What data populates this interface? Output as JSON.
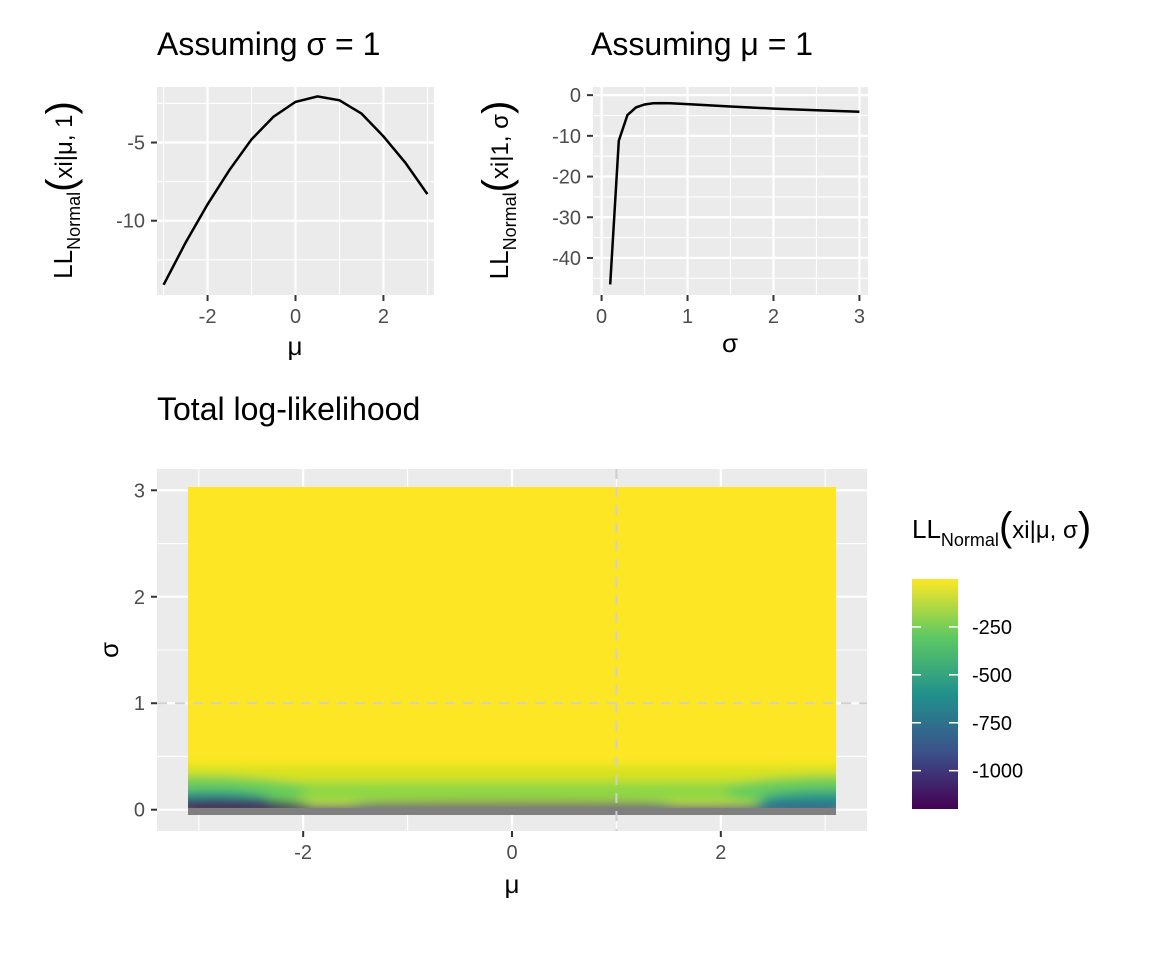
{
  "chart_data": [
    {
      "type": "line",
      "title": "Assuming σ = 1",
      "xlabel": "μ",
      "ylabel_main": "LL",
      "ylabel_sub": "Normal",
      "ylabel_arg": "xi|μ, 1",
      "xlim": [
        -3.15,
        3.15
      ],
      "ylim": [
        -14.75,
        -1.45
      ],
      "x_ticks": [
        -2,
        0,
        2
      ],
      "x_tick_labels": [
        "-2",
        "0",
        "2"
      ],
      "y_ticks": [
        -5,
        -10
      ],
      "y_tick_labels": [
        "-5",
        "-10"
      ],
      "grid": true,
      "x": [
        -3,
        -2.5,
        -2,
        -1.5,
        -1,
        -0.5,
        0,
        0.5,
        1,
        1.5,
        2,
        2.5,
        3
      ],
      "y": [
        -14.1,
        -11.4,
        -8.95,
        -6.75,
        -4.8,
        -3.35,
        -2.4,
        -2.05,
        -2.3,
        -3.15,
        -4.6,
        -6.3,
        -8.3
      ]
    },
    {
      "type": "line",
      "title": "Assuming μ = 1",
      "xlabel": "σ",
      "ylabel_main": "LL",
      "ylabel_sub": "Normal",
      "ylabel_arg": "xi|1, σ",
      "xlim": [
        -0.1,
        3.1
      ],
      "ylim": [
        -49.1,
        2.0
      ],
      "x_ticks": [
        0,
        1,
        2,
        3
      ],
      "x_tick_labels": [
        "0",
        "1",
        "2",
        "3"
      ],
      "y_ticks": [
        0,
        -10,
        -20,
        -30,
        -40
      ],
      "y_tick_labels": [
        "0",
        "-10",
        "-20",
        "-30",
        "-40"
      ],
      "grid": true,
      "x": [
        0.1,
        0.2,
        0.3,
        0.4,
        0.5,
        0.6,
        0.7,
        0.8,
        1.0,
        1.5,
        2.0,
        2.5,
        3.0
      ],
      "y": [
        -46.5,
        -11.2,
        -4.9,
        -3.0,
        -2.3,
        -2.0,
        -1.95,
        -2.0,
        -2.2,
        -2.8,
        -3.3,
        -3.7,
        -4.1
      ]
    },
    {
      "type": "heatmap",
      "title": "Total log-likelihood",
      "xlabel": "μ",
      "ylabel": "σ",
      "xlim": [
        -3.4,
        3.4
      ],
      "ylim": [
        -0.2,
        3.2
      ],
      "x_ticks": [
        -2,
        0,
        2
      ],
      "x_tick_labels": [
        "-2",
        "0",
        "2"
      ],
      "y_ticks": [
        0,
        1,
        2,
        3
      ],
      "y_tick_labels": [
        "0",
        "1",
        "2",
        "3"
      ],
      "x_range": [
        -3.05,
        3.05
      ],
      "y_range": [
        -0.05,
        3.05
      ],
      "reference_lines": {
        "mu": 1,
        "sigma": 1,
        "style": "dashed"
      },
      "legend": {
        "title_main": "LL",
        "title_sub": "Normal",
        "title_arg": "xi|μ, σ",
        "placement": "right",
        "range": [
          -1200,
          0
        ],
        "ticks": [
          -250,
          -500,
          -750,
          -1000
        ],
        "tick_labels": [
          "-250",
          "-500",
          "-750",
          "-1000"
        ],
        "palette": "viridis"
      },
      "colors": [
        "#440154",
        "#3b528b",
        "#21918c",
        "#5ec962",
        "#fde725"
      ]
    }
  ]
}
